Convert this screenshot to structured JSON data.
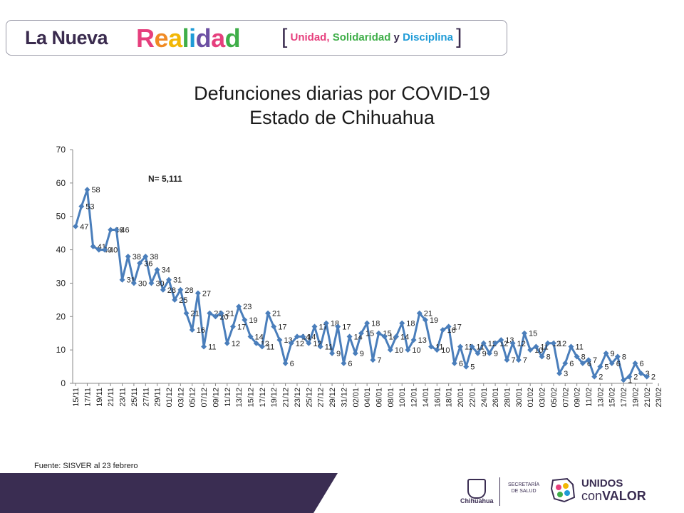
{
  "header": {
    "brand_prefix": "La Nueva",
    "brand_main": "Realidad",
    "slogan_open": "[",
    "slogan_1": "Unidad,",
    "slogan_2": "Solidaridad",
    "slogan_and": "y",
    "slogan_3": "Disciplina",
    "slogan_close": "]"
  },
  "title_line1": "Defunciones diarias por COVID-19",
  "title_line2": "Estado de Chihuahua",
  "annotation": "N= 5,111",
  "source": "Fuente:  SISVER al 23 febrero",
  "footer": {
    "gov_name": "Chihuahua",
    "dept_line1": "SECRETARÍA",
    "dept_line2": "DE SALUD",
    "campaign_1": "UNIDOS",
    "campaign_2a": "con",
    "campaign_2b": "VALOR"
  },
  "colors": {
    "series": "#4a7ebb",
    "footer": "#3a2d52"
  },
  "chart_data": {
    "type": "line",
    "title": "Defunciones diarias por COVID-19 Estado de Chihuahua",
    "xlabel": "",
    "ylabel": "",
    "ylim": [
      0,
      70
    ],
    "yticks": [
      0,
      10,
      20,
      30,
      40,
      50,
      60,
      70
    ],
    "start_date": "15/11",
    "tick_labels": [
      "15/11",
      "17/11",
      "19/11",
      "21/11",
      "23/11",
      "25/11",
      "27/11",
      "29/11",
      "01/12",
      "03/12",
      "05/12",
      "07/12",
      "09/12",
      "11/12",
      "13/12",
      "15/12",
      "17/12",
      "19/12",
      "21/12",
      "23/12",
      "25/12",
      "27/12",
      "29/12",
      "31/12",
      "02/01",
      "04/01",
      "06/01",
      "08/01",
      "10/01",
      "12/01",
      "14/01",
      "16/01",
      "18/01",
      "20/01",
      "22/01",
      "24/01",
      "26/01",
      "28/01",
      "30/01",
      "01/02",
      "03/02",
      "05/02",
      "07/02",
      "09/02",
      "11/02",
      "13/02",
      "15/02",
      "17/02",
      "19/02",
      "21/02",
      "23/02"
    ],
    "series": [
      {
        "name": "Defunciones diarias",
        "values": [
          47,
          53,
          58,
          41,
          40,
          40,
          46,
          46,
          31,
          38,
          30,
          36,
          38,
          30,
          34,
          28,
          31,
          25,
          28,
          21,
          16,
          27,
          11,
          21,
          20,
          21,
          12,
          17,
          23,
          19,
          14,
          12,
          11,
          21,
          17,
          13,
          6,
          12,
          14,
          14,
          12,
          17,
          11,
          18,
          9,
          17,
          6,
          14,
          9,
          15,
          18,
          7,
          15,
          14,
          10,
          14,
          18,
          10,
          13,
          21,
          19,
          11,
          10,
          16,
          17,
          6,
          11,
          5,
          11,
          9,
          12,
          9,
          12,
          13,
          7,
          12,
          7,
          15,
          10,
          11,
          8,
          12,
          12,
          3,
          6,
          11,
          8,
          6,
          7,
          2,
          5,
          9,
          6,
          8,
          1,
          2,
          6,
          3,
          2
        ],
        "labels": [
          "47",
          "53",
          "58",
          "41",
          "40",
          "40",
          "46",
          "46",
          "31",
          "38",
          "30",
          "36",
          "38",
          "30",
          "34",
          "28",
          "31",
          "25",
          "28",
          "21",
          "16",
          "27",
          "11",
          "21",
          "20",
          "21",
          "12",
          "17",
          "23",
          "19",
          "14",
          "12",
          "11",
          "21",
          "17",
          "13",
          "6",
          "12",
          "14",
          "14",
          "12",
          "17",
          "11",
          "18",
          "9",
          "17",
          "6",
          "14",
          "9",
          "15",
          "18",
          "7",
          "15",
          "14",
          "10",
          "14",
          "18",
          "10",
          "13",
          "21",
          "19",
          "11",
          "10",
          "16",
          "17",
          "6",
          "11",
          "5",
          "11",
          "9",
          "12",
          "9",
          "12",
          "13",
          "7",
          "12",
          "7",
          "15",
          "10",
          "11",
          "8",
          "12",
          "12",
          "3",
          "6",
          "11",
          "8",
          "6",
          "7",
          "2",
          "5",
          "9",
          "6",
          "8",
          "1",
          "2",
          "6",
          "3",
          "2"
        ]
      }
    ]
  }
}
